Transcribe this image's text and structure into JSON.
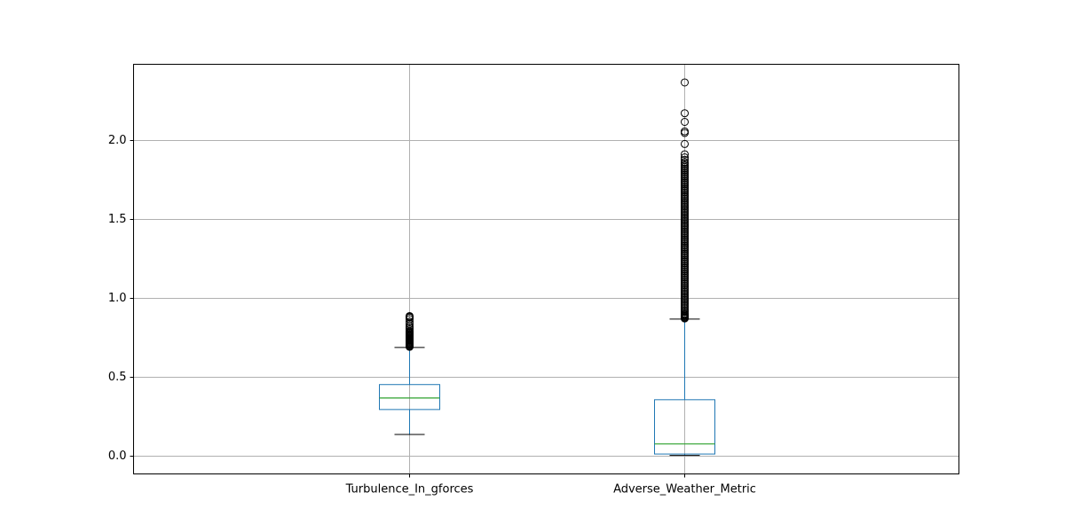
{
  "chart_data": {
    "type": "box",
    "title": "",
    "xlabel": "",
    "ylabel": "",
    "ylim": [
      -0.115,
      2.48
    ],
    "yticks": [
      0.0,
      0.5,
      1.0,
      1.5,
      2.0
    ],
    "yticklabels": [
      "0.0",
      "0.5",
      "1.0",
      "1.5",
      "2.0"
    ],
    "grid": true,
    "categories": [
      "Turbulence_In_gforces",
      "Adverse_Weather_Metric"
    ],
    "series": [
      {
        "whisker_low": 0.135,
        "q1": 0.293,
        "median": 0.366,
        "q3": 0.451,
        "whisker_high": 0.686,
        "outliers": [
          0.69,
          0.695,
          0.7,
          0.705,
          0.71,
          0.715,
          0.72,
          0.725,
          0.73,
          0.735,
          0.74,
          0.745,
          0.75,
          0.755,
          0.76,
          0.765,
          0.77,
          0.775,
          0.78,
          0.785,
          0.79,
          0.8,
          0.81,
          0.82,
          0.835,
          0.85,
          0.865,
          0.875,
          0.88,
          0.885
        ]
      },
      {
        "whisker_low": 0.002,
        "q1": 0.011,
        "median": 0.075,
        "q3": 0.355,
        "whisker_high": 0.866,
        "outliers": [
          0.87,
          0.875,
          0.88,
          0.885,
          0.89,
          0.895,
          0.9,
          0.91,
          0.92,
          0.93,
          0.94,
          0.95,
          0.96,
          0.97,
          0.98,
          0.99,
          1.0,
          1.01,
          1.02,
          1.03,
          1.04,
          1.05,
          1.06,
          1.07,
          1.08,
          1.09,
          1.1,
          1.11,
          1.12,
          1.13,
          1.14,
          1.15,
          1.16,
          1.17,
          1.18,
          1.19,
          1.2,
          1.21,
          1.22,
          1.23,
          1.24,
          1.25,
          1.26,
          1.27,
          1.28,
          1.29,
          1.3,
          1.31,
          1.32,
          1.33,
          1.34,
          1.35,
          1.36,
          1.37,
          1.38,
          1.39,
          1.4,
          1.41,
          1.42,
          1.43,
          1.44,
          1.45,
          1.46,
          1.47,
          1.48,
          1.49,
          1.5,
          1.51,
          1.52,
          1.53,
          1.54,
          1.55,
          1.56,
          1.57,
          1.58,
          1.59,
          1.6,
          1.61,
          1.62,
          1.63,
          1.64,
          1.65,
          1.66,
          1.67,
          1.68,
          1.69,
          1.7,
          1.71,
          1.72,
          1.73,
          1.74,
          1.75,
          1.76,
          1.77,
          1.78,
          1.79,
          1.8,
          1.81,
          1.82,
          1.83,
          1.84,
          1.85,
          1.86,
          1.875,
          1.89,
          1.91,
          1.975,
          2.045,
          2.055,
          2.115,
          2.17,
          2.365
        ]
      }
    ],
    "colors": {
      "box": "#1f77b4",
      "median": "#2ca02c",
      "whisker_cap": "#000000",
      "outlier_edge": "#000000",
      "grid": "#b0b0b0",
      "axes": "#000000"
    }
  }
}
